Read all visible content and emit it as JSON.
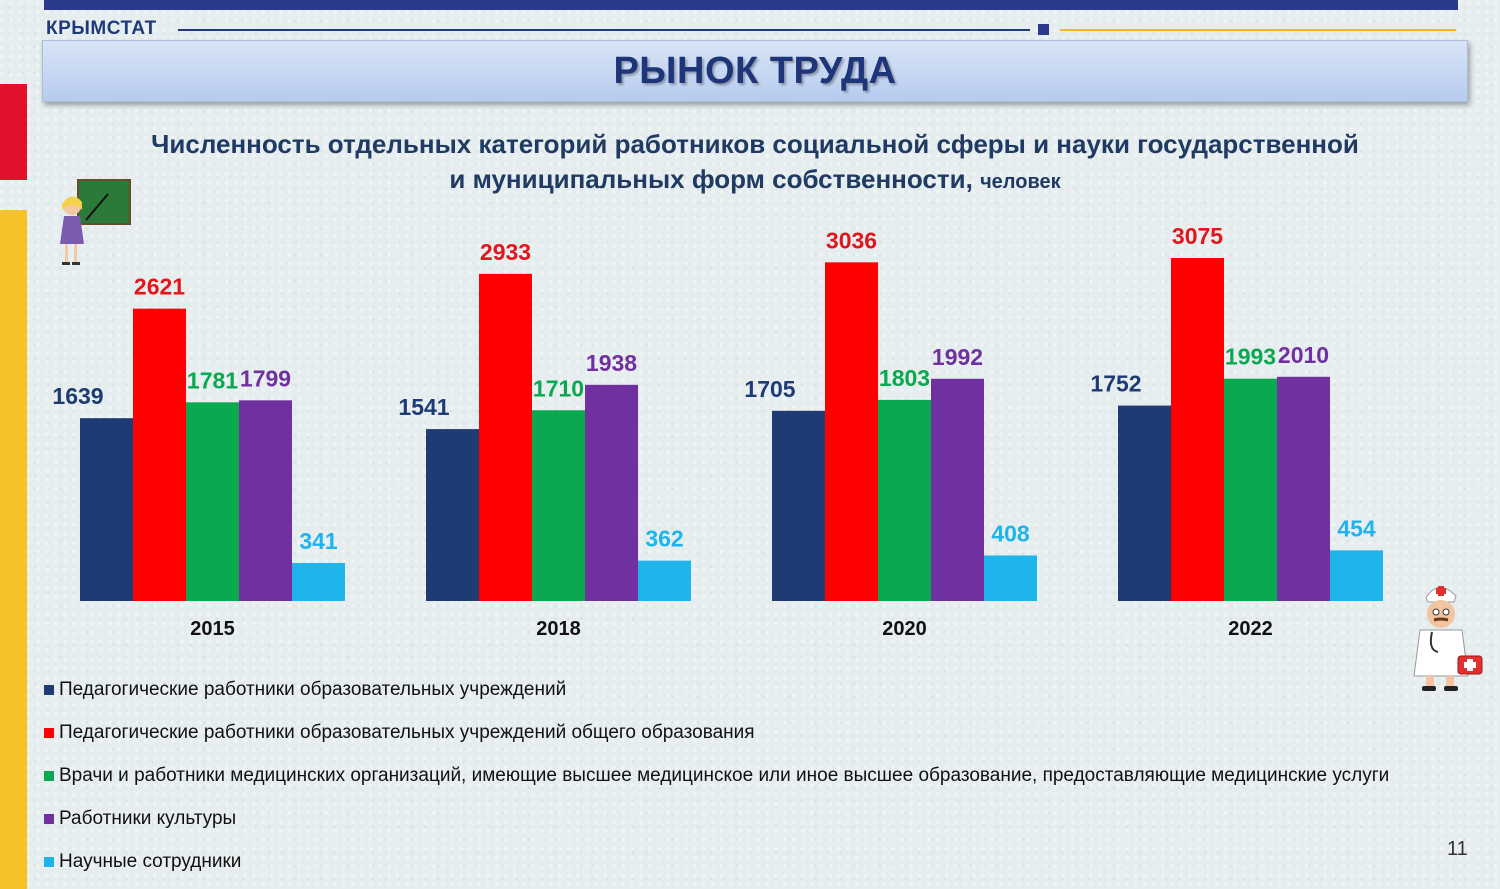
{
  "header": {
    "brand": "КРЫМСТАТ",
    "title": "РЫНОК ТРУДА",
    "subtitle_line1": "Численность отдельных категорий работников социальной сферы и науки государственной",
    "subtitle_line2": "и муниципальных форм собственности,",
    "subtitle_unit": "человек"
  },
  "icons": {
    "teacher": "teacher-at-blackboard-icon",
    "doctor": "doctor-with-medical-bag-icon"
  },
  "colors": {
    "pedagogical": "#1f3b73",
    "general_education": "#ff0000",
    "medical": "#0aa84f",
    "culture": "#7030a0",
    "science": "#1fb4ec",
    "title_text": "#1f3579",
    "side_red": "#e1112c",
    "side_gold": "#f7c128"
  },
  "chart_data": {
    "type": "bar",
    "categories": [
      "2015",
      "2018",
      "2020",
      "2022"
    ],
    "series": [
      {
        "name": "Педагогические работники образовательных учреждений",
        "values": [
          1639,
          1541,
          1705,
          1752
        ],
        "color": "#1f3b73"
      },
      {
        "name": "Педагогические работники образовательных учреждений общего образования",
        "values": [
          2621,
          2933,
          3036,
          3075
        ],
        "color": "#ff0000"
      },
      {
        "name": "Врачи и работники медицинских организаций, имеющие высшее медицинское или иное высшее образование, предоставляющие медицинские услуги",
        "values": [
          1781,
          1710,
          1803,
          1993
        ],
        "color": "#0aa84f"
      },
      {
        "name": "Работники культуры",
        "values": [
          1799,
          1938,
          1992,
          2010
        ],
        "color": "#7030a0"
      },
      {
        "name": "Научные сотрудники",
        "values": [
          341,
          362,
          408,
          454
        ],
        "color": "#1fb4ec"
      }
    ],
    "ylim": [
      0,
      3075
    ],
    "grid": false,
    "legend_position": "bottom",
    "data_labels": true
  },
  "footer": {
    "page_number": "11"
  }
}
